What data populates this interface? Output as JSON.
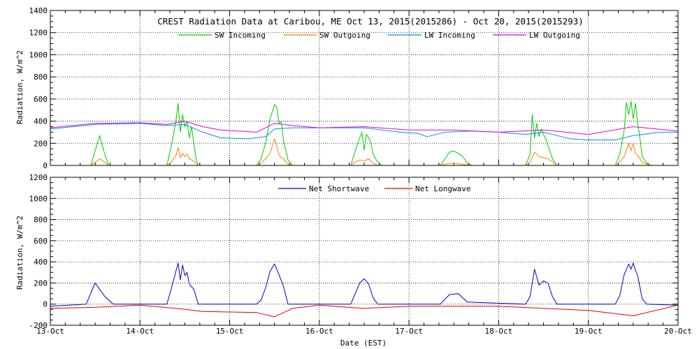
{
  "chart_data": [
    {
      "type": "line",
      "title": "CREST Radiation Data at Caribou, ME   Oct 13, 2015(2015286) - Oct 20, 2015(2015293)",
      "ylabel": "Radiation, W/m^2",
      "ylim": [
        0,
        1400
      ],
      "yticks": [
        0,
        200,
        400,
        600,
        800,
        1000,
        1200,
        1400
      ],
      "xlim": [
        "2015-10-13",
        "2015-10-20"
      ],
      "grid": true,
      "legend_position": "top",
      "series": [
        {
          "name": "SW Incoming",
          "color": "#00cc00",
          "x": [
            "2015-10-13 10:48",
            "2015-10-13 12:00",
            "2015-10-13 13:12",
            "2015-10-13 14:24",
            "2015-10-13 15:36",
            "2015-10-14 07:12",
            "2015-10-14 08:24",
            "2015-10-14 09:36",
            "2015-10-14 10:12",
            "2015-10-14 10:48",
            "2015-10-14 11:24",
            "2015-10-14 12:00",
            "2015-10-14 12:36",
            "2015-10-14 13:12",
            "2015-10-14 13:48",
            "2015-10-14 14:24",
            "2015-10-14 15:00",
            "2015-10-14 15:36",
            "2015-10-14 16:48",
            "2015-10-15 07:12",
            "2015-10-15 08:24",
            "2015-10-15 09:36",
            "2015-10-15 10:48",
            "2015-10-15 12:00",
            "2015-10-15 12:36",
            "2015-10-15 13:12",
            "2015-10-15 13:48",
            "2015-10-15 14:24",
            "2015-10-15 15:36",
            "2015-10-15 16:48",
            "2015-10-16 08:24",
            "2015-10-16 09:36",
            "2015-10-16 10:48",
            "2015-10-16 11:24",
            "2015-10-16 12:00",
            "2015-10-16 12:36",
            "2015-10-16 13:12",
            "2015-10-16 13:48",
            "2015-10-16 14:24",
            "2015-10-16 15:36",
            "2015-10-16 16:48",
            "2015-10-17 08:24",
            "2015-10-17 09:36",
            "2015-10-17 10:48",
            "2015-10-17 12:00",
            "2015-10-17 13:12",
            "2015-10-17 14:24",
            "2015-10-17 15:36",
            "2015-10-17 16:48",
            "2015-10-18 07:12",
            "2015-10-18 08:24",
            "2015-10-18 09:00",
            "2015-10-18 09:36",
            "2015-10-18 10:12",
            "2015-10-18 10:48",
            "2015-10-18 11:24",
            "2015-10-18 12:00",
            "2015-10-18 12:36",
            "2015-10-18 13:12",
            "2015-10-18 13:48",
            "2015-10-18 14:24",
            "2015-10-18 15:36",
            "2015-10-18 16:48",
            "2015-10-19 07:12",
            "2015-10-19 08:24",
            "2015-10-19 09:36",
            "2015-10-19 10:12",
            "2015-10-19 10:48",
            "2015-10-19 11:24",
            "2015-10-19 12:00",
            "2015-10-19 12:36",
            "2015-10-19 13:12",
            "2015-10-19 13:48",
            "2015-10-19 14:24",
            "2015-10-19 15:36",
            "2015-10-19 16:48"
          ],
          "y": [
            0,
            130,
            270,
            120,
            0,
            0,
            180,
            400,
            560,
            300,
            460,
            350,
            400,
            250,
            350,
            200,
            60,
            0,
            0,
            0,
            60,
            200,
            420,
            550,
            530,
            380,
            400,
            230,
            50,
            0,
            0,
            130,
            250,
            300,
            140,
            280,
            250,
            200,
            100,
            30,
            0,
            0,
            60,
            120,
            130,
            110,
            80,
            20,
            0,
            0,
            100,
            460,
            250,
            380,
            260,
            330,
            280,
            240,
            180,
            120,
            60,
            0,
            0,
            0,
            100,
            320,
            570,
            460,
            580,
            420,
            560,
            380,
            250,
            80,
            20,
            0
          ]
        },
        {
          "name": "SW Outgoing",
          "color": "#ff8000",
          "x": [
            "2015-10-13 10:48",
            "2015-10-13 12:00",
            "2015-10-13 13:12",
            "2015-10-13 14:24",
            "2015-10-13 15:36",
            "2015-10-14 07:12",
            "2015-10-14 08:24",
            "2015-10-14 09:36",
            "2015-10-14 10:12",
            "2015-10-14 10:48",
            "2015-10-14 11:24",
            "2015-10-14 12:00",
            "2015-10-14 12:36",
            "2015-10-14 13:12",
            "2015-10-14 14:24",
            "2015-10-14 15:36",
            "2015-10-15 07:12",
            "2015-10-15 08:24",
            "2015-10-15 09:36",
            "2015-10-15 10:48",
            "2015-10-15 12:00",
            "2015-10-15 12:36",
            "2015-10-15 13:12",
            "2015-10-15 14:24",
            "2015-10-15 15:36",
            "2015-10-15 16:48",
            "2015-10-16 08:24",
            "2015-10-16 09:36",
            "2015-10-16 10:48",
            "2015-10-16 12:00",
            "2015-10-16 13:12",
            "2015-10-16 14:24",
            "2015-10-16 15:36",
            "2015-10-17 08:24",
            "2015-10-17 10:48",
            "2015-10-17 13:12",
            "2015-10-17 15:36",
            "2015-10-17 16:48",
            "2015-10-18 07:12",
            "2015-10-18 08:24",
            "2015-10-18 09:36",
            "2015-10-18 10:48",
            "2015-10-18 12:00",
            "2015-10-18 13:12",
            "2015-10-18 14:24",
            "2015-10-18 15:36",
            "2015-10-19 07:12",
            "2015-10-19 08:24",
            "2015-10-19 09:36",
            "2015-10-19 10:48",
            "2015-10-19 11:24",
            "2015-10-19 12:00",
            "2015-10-19 12:36",
            "2015-10-19 13:12",
            "2015-10-19 14:24",
            "2015-10-19 15:36",
            "2015-10-19 16:48"
          ],
          "y": [
            0,
            30,
            60,
            30,
            0,
            0,
            30,
            90,
            160,
            70,
            110,
            80,
            100,
            60,
            40,
            0,
            0,
            20,
            60,
            110,
            240,
            180,
            90,
            60,
            10,
            0,
            0,
            30,
            50,
            40,
            60,
            20,
            0,
            0,
            20,
            15,
            5,
            0,
            0,
            30,
            120,
            80,
            70,
            60,
            30,
            0,
            0,
            30,
            80,
            200,
            130,
            200,
            110,
            90,
            30,
            10,
            0
          ]
        },
        {
          "name": "LW Incoming",
          "color": "#0090e0",
          "x": [
            "2015-10-13 00:00",
            "2015-10-13 12:00",
            "2015-10-14 00:00",
            "2015-10-14 07:12",
            "2015-10-14 12:00",
            "2015-10-14 16:48",
            "2015-10-14 21:36",
            "2015-10-15 04:48",
            "2015-10-15 09:36",
            "2015-10-15 12:00",
            "2015-10-15 16:48",
            "2015-10-15 21:36",
            "2015-10-16 07:12",
            "2015-10-16 12:00",
            "2015-10-16 16:48",
            "2015-10-16 21:36",
            "2015-10-17 02:24",
            "2015-10-17 04:48",
            "2015-10-17 09:36",
            "2015-10-17 16:48",
            "2015-10-18 00:00",
            "2015-10-18 07:12",
            "2015-10-18 12:00",
            "2015-10-18 16:48",
            "2015-10-18 19:12",
            "2015-10-19 00:00",
            "2015-10-19 07:12",
            "2015-10-19 12:00",
            "2015-10-19 19:12",
            "2015-10-20 00:00"
          ],
          "y": [
            330,
            370,
            380,
            360,
            370,
            300,
            250,
            240,
            260,
            330,
            340,
            340,
            340,
            340,
            320,
            300,
            290,
            260,
            300,
            310,
            300,
            280,
            300,
            260,
            240,
            230,
            230,
            270,
            300,
            300
          ]
        },
        {
          "name": "LW Outgoing",
          "color": "#e000e0",
          "x": [
            "2015-10-13 00:00",
            "2015-10-13 12:00",
            "2015-10-14 00:00",
            "2015-10-14 07:12",
            "2015-10-14 12:00",
            "2015-10-14 16:48",
            "2015-10-14 21:36",
            "2015-10-15 07:12",
            "2015-10-15 12:00",
            "2015-10-15 16:48",
            "2015-10-16 00:00",
            "2015-10-16 12:00",
            "2015-10-17 00:00",
            "2015-10-17 12:00",
            "2015-10-18 00:00",
            "2015-10-18 12:00",
            "2015-10-19 00:00",
            "2015-10-19 12:00",
            "2015-10-20 00:00"
          ],
          "y": [
            340,
            380,
            385,
            370,
            400,
            350,
            320,
            300,
            380,
            360,
            340,
            350,
            320,
            320,
            300,
            320,
            280,
            350,
            310
          ]
        }
      ]
    },
    {
      "type": "line",
      "xlabel": "Date (EST)",
      "ylabel": "Radiation, W/m^2",
      "ylim": [
        -200,
        1200
      ],
      "yticks": [
        -200,
        0,
        200,
        400,
        600,
        800,
        1000,
        1200
      ],
      "xlim": [
        "2015-10-13",
        "2015-10-20"
      ],
      "xticks": [
        "13-Oct",
        "14-Oct",
        "15-Oct",
        "16-Oct",
        "17-Oct",
        "18-Oct",
        "19-Oct",
        "20-Oct"
      ],
      "grid": true,
      "legend_position": "top",
      "series": [
        {
          "name": "Net Shortwave",
          "color": "#0000c0",
          "x": [
            "2015-10-13 00:00",
            "2015-10-13 09:36",
            "2015-10-13 12:00",
            "2015-10-13 14:24",
            "2015-10-13 16:48",
            "2015-10-14 07:12",
            "2015-10-14 08:24",
            "2015-10-14 09:36",
            "2015-10-14 10:12",
            "2015-10-14 10:48",
            "2015-10-14 11:24",
            "2015-10-14 12:00",
            "2015-10-14 12:36",
            "2015-10-14 13:12",
            "2015-10-14 14:24",
            "2015-10-14 15:36",
            "2015-10-15 07:12",
            "2015-10-15 08:24",
            "2015-10-15 09:36",
            "2015-10-15 10:48",
            "2015-10-15 12:00",
            "2015-10-15 12:36",
            "2015-10-15 13:12",
            "2015-10-15 14:24",
            "2015-10-15 15:36",
            "2015-10-16 08:24",
            "2015-10-16 09:36",
            "2015-10-16 10:48",
            "2015-10-16 12:00",
            "2015-10-16 13:12",
            "2015-10-16 14:24",
            "2015-10-16 15:36",
            "2015-10-17 08:24",
            "2015-10-17 10:48",
            "2015-10-17 13:12",
            "2015-10-17 15:36",
            "2015-10-18 07:12",
            "2015-10-18 08:24",
            "2015-10-18 09:36",
            "2015-10-18 10:48",
            "2015-10-18 12:00",
            "2015-10-18 13:12",
            "2015-10-18 14:24",
            "2015-10-18 15:36",
            "2015-10-19 07:12",
            "2015-10-19 08:24",
            "2015-10-19 09:36",
            "2015-10-19 10:48",
            "2015-10-19 11:24",
            "2015-10-19 12:00",
            "2015-10-19 12:36",
            "2015-10-19 13:12",
            "2015-10-19 14:24",
            "2015-10-19 15:36",
            "2015-10-20 00:00"
          ],
          "y": [
            -20,
            0,
            200,
            80,
            0,
            0,
            150,
            310,
            390,
            230,
            370,
            270,
            300,
            190,
            140,
            0,
            0,
            40,
            150,
            310,
            380,
            330,
            280,
            170,
            0,
            0,
            100,
            200,
            240,
            190,
            60,
            0,
            0,
            90,
            100,
            20,
            0,
            70,
            330,
            180,
            220,
            200,
            70,
            0,
            0,
            80,
            280,
            380,
            330,
            390,
            320,
            270,
            50,
            0,
            -10
          ]
        },
        {
          "name": "Net Longwave",
          "color": "#e00000",
          "x": [
            "2015-10-13 00:00",
            "2015-10-13 12:00",
            "2015-10-14 00:00",
            "2015-10-14 09:36",
            "2015-10-14 12:00",
            "2015-10-14 16:48",
            "2015-10-15 07:12",
            "2015-10-15 12:00",
            "2015-10-15 16:48",
            "2015-10-16 00:00",
            "2015-10-16 12:00",
            "2015-10-17 00:00",
            "2015-10-17 12:00",
            "2015-10-18 00:00",
            "2015-10-18 12:00",
            "2015-10-19 00:00",
            "2015-10-19 12:00",
            "2015-10-20 00:00"
          ],
          "y": [
            -40,
            -30,
            -10,
            -40,
            -50,
            -70,
            -80,
            -120,
            -40,
            -10,
            -40,
            -20,
            -20,
            -20,
            -40,
            -60,
            -110,
            -10
          ]
        }
      ]
    }
  ]
}
